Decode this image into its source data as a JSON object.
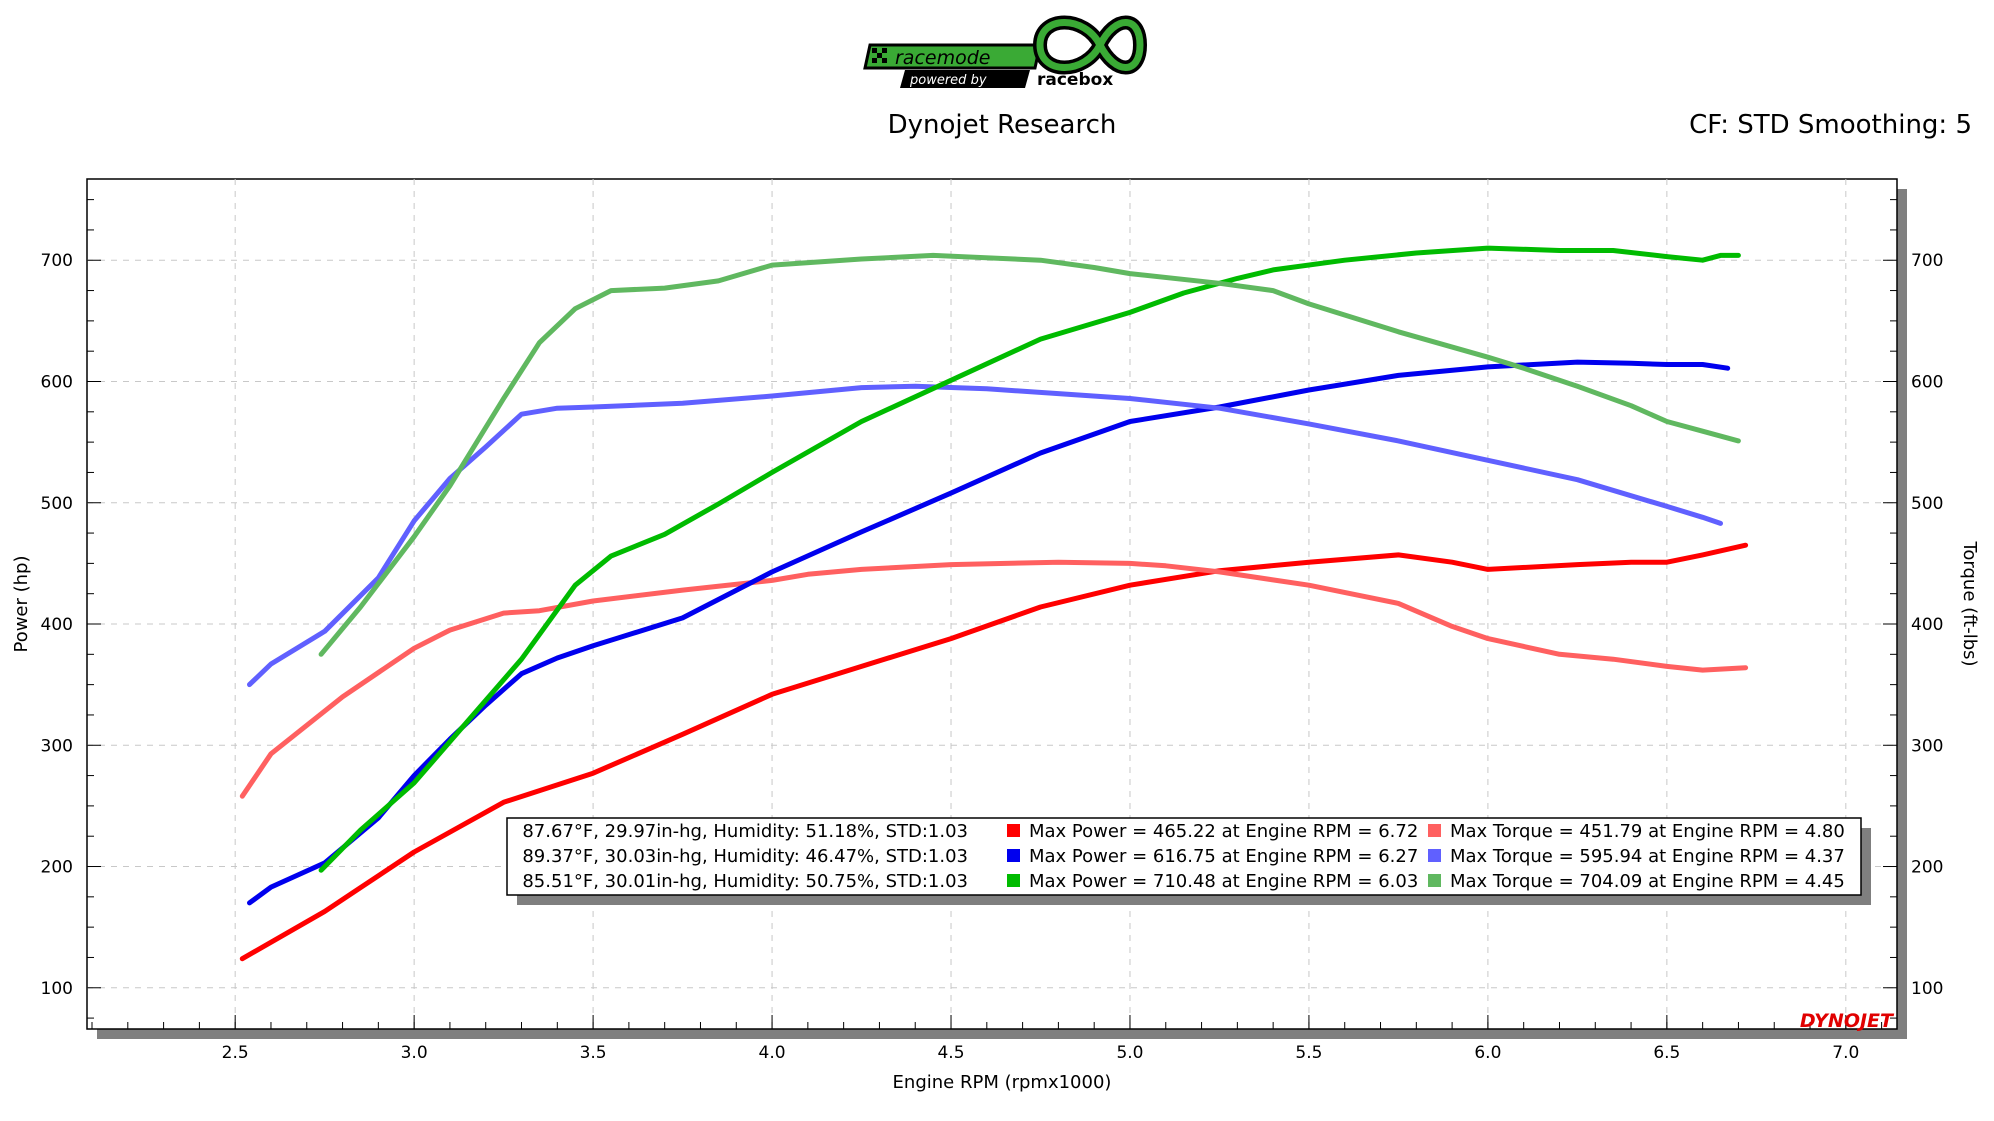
{
  "header": {
    "logo_text": "racemode powered by racebox",
    "title": "Dynojet Research",
    "settings": "CF: STD Smoothing: 5"
  },
  "chart_data": {
    "type": "line",
    "title": "Dynojet Research",
    "xlabel": "Engine RPM (rpmx1000)",
    "ylabel": "Power (hp)",
    "y2label": "Torque (ft-lbs)",
    "xlim": [
      2.086,
      7.143
    ],
    "ylim": [
      66,
      767
    ],
    "xticks": [
      "2.5",
      "3.0",
      "3.5",
      "4.0",
      "4.5",
      "5.0",
      "5.5",
      "6.0",
      "6.5",
      "7.0"
    ],
    "yticks": [
      "100",
      "200",
      "300",
      "400",
      "500",
      "600",
      "700"
    ],
    "grid": true,
    "brand_mark": "DYNOJET",
    "series": [
      {
        "name": "Run 1 Power",
        "axis": "power",
        "color": "#ff0000",
        "width": 5,
        "x": [
          2.52,
          2.75,
          3.0,
          3.25,
          3.5,
          3.75,
          4.0,
          4.25,
          4.5,
          4.75,
          5.0,
          5.25,
          5.5,
          5.75,
          5.9,
          6.0,
          6.25,
          6.4,
          6.5,
          6.6,
          6.72
        ],
        "y": [
          124,
          163,
          212,
          253,
          277,
          309,
          342,
          365,
          388,
          414,
          432,
          444,
          451,
          457,
          451,
          445,
          449,
          451,
          451,
          457,
          465
        ]
      },
      {
        "name": "Run 1 Torque",
        "axis": "torque",
        "color": "#ff6060",
        "width": 5,
        "x": [
          2.52,
          2.6,
          2.8,
          3.0,
          3.1,
          3.25,
          3.35,
          3.5,
          3.75,
          4.0,
          4.1,
          4.25,
          4.5,
          4.8,
          5.0,
          5.1,
          5.25,
          5.5,
          5.75,
          5.9,
          6.0,
          6.2,
          6.35,
          6.5,
          6.6,
          6.72
        ],
        "y": [
          258,
          293,
          340,
          380,
          395,
          409,
          411,
          419,
          428,
          436,
          441,
          445,
          449,
          451,
          450,
          448,
          443,
          432,
          417,
          398,
          388,
          375,
          371,
          365,
          362,
          364
        ]
      },
      {
        "name": "Run 2 Power",
        "axis": "power",
        "color": "#0000ee",
        "width": 5,
        "x": [
          2.54,
          2.6,
          2.75,
          2.9,
          3.0,
          3.1,
          3.2,
          3.3,
          3.4,
          3.5,
          3.75,
          4.0,
          4.25,
          4.5,
          4.75,
          5.0,
          5.25,
          5.5,
          5.75,
          6.0,
          6.25,
          6.4,
          6.5,
          6.6,
          6.67
        ],
        "y": [
          170,
          183,
          203,
          240,
          275,
          305,
          333,
          359,
          372,
          382,
          405,
          443,
          476,
          508,
          541,
          567,
          579,
          593,
          605,
          612,
          616,
          615,
          614,
          614,
          611
        ]
      },
      {
        "name": "Run 2 Torque",
        "axis": "torque",
        "color": "#6060ff",
        "width": 5,
        "x": [
          2.54,
          2.6,
          2.75,
          2.9,
          3.0,
          3.1,
          3.2,
          3.3,
          3.4,
          3.5,
          3.75,
          4.0,
          4.25,
          4.4,
          4.6,
          4.8,
          5.0,
          5.25,
          5.5,
          5.75,
          6.0,
          6.25,
          6.5,
          6.6,
          6.65
        ],
        "y": [
          350,
          367,
          394,
          438,
          485,
          520,
          546,
          573,
          578,
          579,
          582,
          588,
          595,
          596,
          594,
          590,
          586,
          578,
          565,
          551,
          535,
          519,
          497,
          488,
          483
        ]
      },
      {
        "name": "Run 3 Power",
        "axis": "power",
        "color": "#00bb00",
        "width": 5,
        "x": [
          2.74,
          2.85,
          3.0,
          3.15,
          3.3,
          3.45,
          3.55,
          3.7,
          3.85,
          4.0,
          4.25,
          4.5,
          4.75,
          5.0,
          5.15,
          5.3,
          5.4,
          5.6,
          5.8,
          6.0,
          6.2,
          6.35,
          6.5,
          6.6,
          6.65,
          6.7
        ],
        "y": [
          197,
          230,
          269,
          320,
          371,
          432,
          456,
          474,
          499,
          525,
          567,
          601,
          635,
          657,
          673,
          685,
          692,
          700,
          706,
          710,
          708,
          708,
          703,
          700,
          704,
          704
        ]
      },
      {
        "name": "Run 3 Torque",
        "axis": "torque",
        "color": "#60b860",
        "width": 5,
        "x": [
          2.74,
          2.85,
          3.0,
          3.1,
          3.25,
          3.35,
          3.45,
          3.55,
          3.7,
          3.85,
          4.0,
          4.25,
          4.45,
          4.75,
          4.9,
          5.0,
          5.25,
          5.4,
          5.5,
          5.75,
          6.0,
          6.1,
          6.25,
          6.4,
          6.5,
          6.6,
          6.7
        ],
        "y": [
          375,
          414,
          472,
          514,
          586,
          632,
          660,
          675,
          677,
          683,
          696,
          701,
          704,
          700,
          694,
          689,
          681,
          675,
          664,
          641,
          620,
          611,
          596,
          580,
          567,
          559,
          551
        ]
      }
    ]
  },
  "legend": {
    "rows": [
      {
        "conditions": "87.67°F, 29.97in-hg, Humidity: 51.18%, STD:1.03",
        "power": "Max Power = 465.22 at Engine RPM = 6.72",
        "torque": "Max Torque = 451.79 at Engine RPM = 4.80",
        "power_color": "#ff0000",
        "torque_color": "#ff6060"
      },
      {
        "conditions": "89.37°F, 30.03in-hg, Humidity: 46.47%, STD:1.03",
        "power": "Max Power = 616.75 at Engine RPM = 6.27",
        "torque": "Max Torque = 595.94 at Engine RPM = 4.37",
        "power_color": "#0000ee",
        "torque_color": "#6060ff"
      },
      {
        "conditions": "85.51°F, 30.01in-hg, Humidity: 50.75%, STD:1.03",
        "power": "Max Power = 710.48 at Engine RPM = 6.03",
        "torque": "Max Torque = 704.09 at Engine RPM = 4.45",
        "power_color": "#00bb00",
        "torque_color": "#60b860"
      }
    ]
  }
}
